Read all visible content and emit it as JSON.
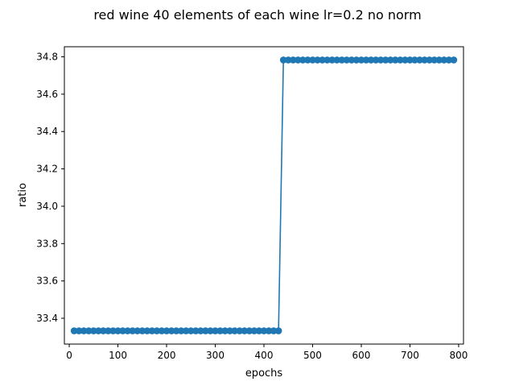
{
  "chart_data": {
    "type": "line",
    "title": "red wine 40 elements of each wine lr=0.2 no norm",
    "xlabel": "epochs",
    "ylabel": "ratio",
    "xlim": [
      -10,
      810
    ],
    "ylim": [
      33.262,
      34.854
    ],
    "x_ticks": [
      0,
      100,
      200,
      300,
      400,
      500,
      600,
      700,
      800
    ],
    "y_ticks": [
      33.4,
      33.6,
      33.8,
      34.0,
      34.2,
      34.4,
      34.6,
      34.8
    ],
    "x_tick_labels": [
      "0",
      "100",
      "200",
      "300",
      "400",
      "500",
      "600",
      "700",
      "800"
    ],
    "y_tick_labels": [
      "33.4",
      "33.6",
      "33.8",
      "34.0",
      "34.2",
      "34.4",
      "34.6",
      "34.8"
    ],
    "grid": false,
    "series": [
      {
        "color": "#1f77b4",
        "marker": "circle",
        "x": [
          10,
          20,
          30,
          40,
          50,
          60,
          70,
          80,
          90,
          100,
          110,
          120,
          130,
          140,
          150,
          160,
          170,
          180,
          190,
          200,
          210,
          220,
          230,
          240,
          250,
          260,
          270,
          280,
          290,
          300,
          310,
          320,
          330,
          340,
          350,
          360,
          370,
          380,
          390,
          400,
          410,
          420,
          430,
          440,
          450,
          460,
          470,
          480,
          490,
          500,
          510,
          520,
          530,
          540,
          550,
          560,
          570,
          580,
          590,
          600,
          610,
          620,
          630,
          640,
          650,
          660,
          670,
          680,
          690,
          700,
          710,
          720,
          730,
          740,
          750,
          760,
          770,
          780,
          790
        ],
        "y": [
          33.333,
          33.333,
          33.333,
          33.333,
          33.333,
          33.333,
          33.333,
          33.333,
          33.333,
          33.333,
          33.333,
          33.333,
          33.333,
          33.333,
          33.333,
          33.333,
          33.333,
          33.333,
          33.333,
          33.333,
          33.333,
          33.333,
          33.333,
          33.333,
          33.333,
          33.333,
          33.333,
          33.333,
          33.333,
          33.333,
          33.333,
          33.333,
          33.333,
          33.333,
          33.333,
          33.333,
          33.333,
          33.333,
          33.333,
          33.333,
          33.333,
          33.333,
          33.333,
          34.783,
          34.783,
          34.783,
          34.783,
          34.783,
          34.783,
          34.783,
          34.783,
          34.783,
          34.783,
          34.783,
          34.783,
          34.783,
          34.783,
          34.783,
          34.783,
          34.783,
          34.783,
          34.783,
          34.783,
          34.783,
          34.783,
          34.783,
          34.783,
          34.783,
          34.783,
          34.783,
          34.783,
          34.783,
          34.783,
          34.783,
          34.783,
          34.783,
          34.783,
          34.783,
          34.783
        ]
      }
    ]
  }
}
